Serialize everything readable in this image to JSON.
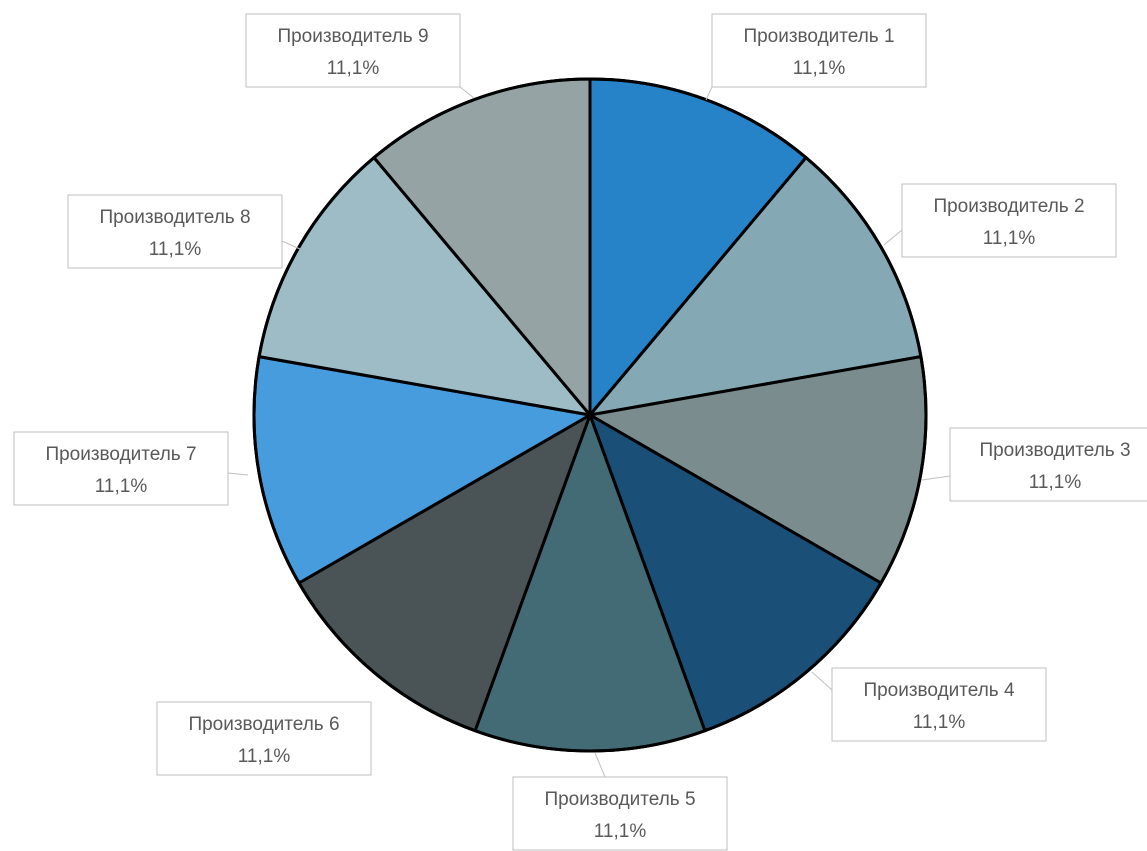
{
  "chart_data": {
    "type": "pie",
    "start_angle_deg": 0,
    "direction": "clockwise",
    "label_format": "name_and_percent",
    "slices": [
      {
        "name": "Производитель 1",
        "value": 11.1,
        "label": "11,1%",
        "color": "#2783C7"
      },
      {
        "name": "Производитель 2",
        "value": 11.1,
        "label": "11,1%",
        "color": "#84A9B5"
      },
      {
        "name": "Производитель 3",
        "value": 11.1,
        "label": "11,1%",
        "color": "#7B8C8F"
      },
      {
        "name": "Производитель 4",
        "value": 11.1,
        "label": "11,1%",
        "color": "#1A4F78"
      },
      {
        "name": "Производитель 5",
        "value": 11.1,
        "label": "11,1%",
        "color": "#436B75"
      },
      {
        "name": "Производитель 6",
        "value": 11.1,
        "label": "11,1%",
        "color": "#4A5457"
      },
      {
        "name": "Производитель 7",
        "value": 11.1,
        "label": "11,1%",
        "color": "#469CDC"
      },
      {
        "name": "Производитель 8",
        "value": 11.1,
        "label": "11,1%",
        "color": "#9DBCC5"
      },
      {
        "name": "Производитель 9",
        "value": 11.1,
        "label": "11,1%",
        "color": "#95A3A5"
      }
    ]
  }
}
